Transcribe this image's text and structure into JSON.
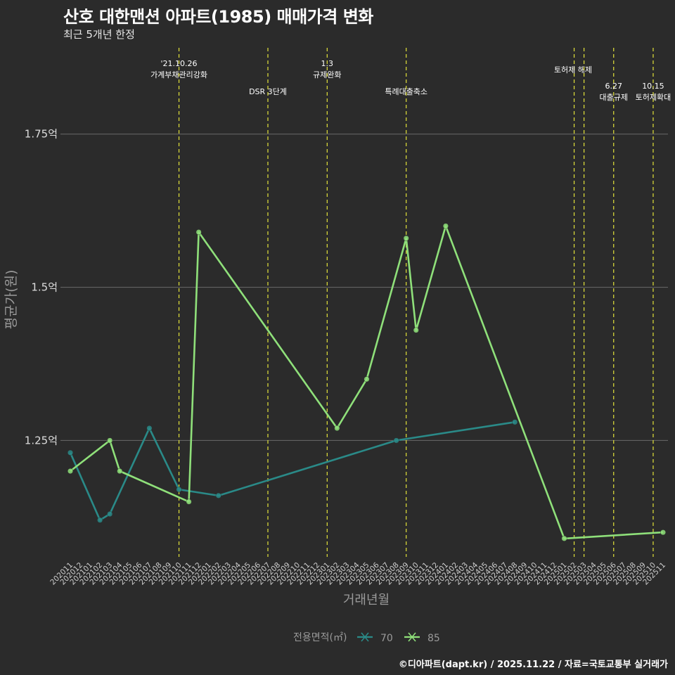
{
  "title": "산호 대한맨션 아파트(1985) 매매가격 변화",
  "subtitle": "최근 5개년 한정",
  "caption": "©디아파트(dapt.kr) / 2025.11.22 / 자료=국토교통부 실거래가",
  "chart_data": {
    "type": "line",
    "xlabel": "거래년월",
    "ylabel": "평균가(원)",
    "ylim": [
      1.06,
      1.9
    ],
    "yticks": [
      {
        "value": 1.25,
        "label": "1.25억"
      },
      {
        "value": 1.5,
        "label": "1.5억"
      },
      {
        "value": 1.75,
        "label": "1.75억"
      }
    ],
    "categories": [
      "202011",
      "202012",
      "202101",
      "202102",
      "202103",
      "202104",
      "202105",
      "202106",
      "202107",
      "202108",
      "202109",
      "202110",
      "202111",
      "202112",
      "202201",
      "202202",
      "202203",
      "202204",
      "202205",
      "202206",
      "202207",
      "202208",
      "202209",
      "202210",
      "202211",
      "202212",
      "202301",
      "202302",
      "202303",
      "202304",
      "202305",
      "202306",
      "202307",
      "202308",
      "202309",
      "202310",
      "202311",
      "202312",
      "202401",
      "202402",
      "202403",
      "202404",
      "202405",
      "202406",
      "202407",
      "202408",
      "202409",
      "202410",
      "202411",
      "202412",
      "202501",
      "202502",
      "202503",
      "202504",
      "202505",
      "202506",
      "202507",
      "202508",
      "202509",
      "202510",
      "202511"
    ],
    "legend": {
      "title": "전용면적(㎡)",
      "position": "bottom"
    },
    "series": [
      {
        "name": "70",
        "color": "#2a8a88",
        "points": [
          [
            "202011",
            1.23
          ],
          [
            "202102",
            1.12
          ],
          [
            "202103",
            1.13
          ],
          [
            "202107",
            1.27
          ],
          [
            "202110",
            1.17
          ],
          [
            "202202",
            1.16
          ],
          [
            "202308",
            1.25
          ],
          [
            "202408",
            1.28
          ]
        ]
      },
      {
        "name": "85",
        "color": "#8fe07a",
        "points": [
          [
            "202011",
            1.2
          ],
          [
            "202103",
            1.25
          ],
          [
            "202104",
            1.2
          ],
          [
            "202111",
            1.15
          ],
          [
            "202112",
            1.59
          ],
          [
            "202302",
            1.27
          ],
          [
            "202305",
            1.35
          ],
          [
            "202309",
            1.58
          ],
          [
            "202310",
            1.43
          ],
          [
            "202401",
            1.6
          ],
          [
            "202501",
            1.09
          ],
          [
            "202511",
            1.1
          ]
        ]
      }
    ],
    "events": [
      {
        "x": "202110",
        "label1": "'21.10.26",
        "label2": "가계부채관리강화",
        "row": 0
      },
      {
        "x": "202207",
        "label1": "",
        "label2": "DSR 3단계",
        "row": 1
      },
      {
        "x": "202301",
        "label1": "1.3",
        "label2": "규제완화",
        "row": 0
      },
      {
        "x": "202309",
        "label1": "",
        "label2": "특례대출축소",
        "row": 1
      },
      {
        "x": "202502",
        "label1": "",
        "label2": "토허제 해제",
        "row": 2
      },
      {
        "x": "202503",
        "label1": "",
        "label2": "",
        "row": 2
      },
      {
        "x": "202506",
        "label1": "6.27",
        "label2": "대출규제",
        "row": 3
      },
      {
        "x": "202510",
        "label1": "10.15",
        "label2": "토허제확대",
        "row": 3
      }
    ]
  }
}
